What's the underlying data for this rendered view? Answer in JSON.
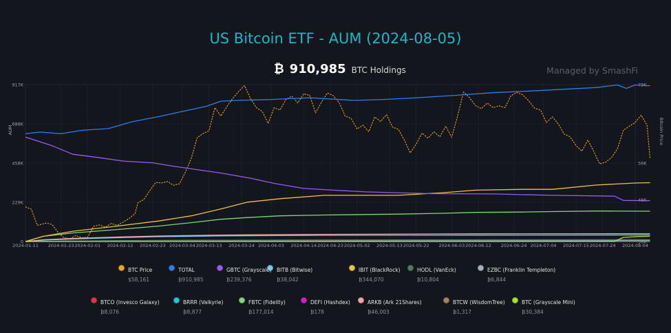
{
  "header": {
    "title": "US Bitcoin ETF - AUM (2024-08-05)",
    "btc_symbol": "₿",
    "holdings_value": "910,985",
    "holdings_label": "BTC Holdings",
    "managed_by": "Managed by SmashFi"
  },
  "chart_data": {
    "type": "line",
    "title": "US Bitcoin ETF - AUM (2024-08-05)",
    "ylabel": "AUM",
    "y2label": "Bitcoin Price",
    "y_ticks": [
      "0",
      "229K",
      "458K",
      "688K",
      "917K"
    ],
    "ylim": [
      0,
      917000
    ],
    "y2_ticks": [
      "39K",
      "48K",
      "56K",
      "73K"
    ],
    "y2_tick_values": [
      39000,
      48000,
      56000,
      73000
    ],
    "y2lim": [
      39000,
      73000
    ],
    "x_ticks": [
      "2024-01-11",
      "2024-01-23",
      "2024-02-01",
      "2024-02-12",
      "2024-02-23",
      "2024-03-04",
      "2024-03-13",
      "2024-03-24",
      "2024-04-03",
      "2024-04-14",
      "2024-04-23",
      "2024-05-02",
      "2024-05-13",
      "2024-05-22",
      "2024-06-03",
      "2024-06-12",
      "2024-06-24",
      "2024-07-04",
      "2024-07-15",
      "2024-07-24",
      "2024-08-04"
    ],
    "x_start": "2024-01-11",
    "x_end": "2024-08-04",
    "grid": true,
    "series": [
      {
        "name": "TOTAL",
        "axis": "left",
        "color": "#2f7fe6",
        "values": [
          [
            0,
            630000
          ],
          [
            5,
            640000
          ],
          [
            12,
            630000
          ],
          [
            19,
            650000
          ],
          [
            28,
            660000
          ],
          [
            36,
            700000
          ],
          [
            45,
            730000
          ],
          [
            53,
            760000
          ],
          [
            61,
            790000
          ],
          [
            66,
            820000
          ],
          [
            72,
            825000
          ],
          [
            83,
            830000
          ],
          [
            96,
            840000
          ],
          [
            111,
            825000
          ],
          [
            121,
            830000
          ],
          [
            132,
            840000
          ],
          [
            146,
            855000
          ],
          [
            158,
            870000
          ],
          [
            171,
            880000
          ],
          [
            182,
            890000
          ],
          [
            193,
            900000
          ],
          [
            200,
            915000
          ],
          [
            203,
            895000
          ],
          [
            206,
            915000
          ],
          [
            211,
            910000
          ]
        ]
      },
      {
        "name": "GBTC (Grayscale)",
        "axis": "left",
        "color": "#9b5cf0",
        "values": [
          [
            0,
            610000
          ],
          [
            9,
            560000
          ],
          [
            16,
            510000
          ],
          [
            25,
            490000
          ],
          [
            33,
            470000
          ],
          [
            43,
            460000
          ],
          [
            50,
            440000
          ],
          [
            58,
            420000
          ],
          [
            66,
            400000
          ],
          [
            76,
            370000
          ],
          [
            84,
            340000
          ],
          [
            94,
            310000
          ],
          [
            104,
            300000
          ],
          [
            115,
            290000
          ],
          [
            136,
            280000
          ],
          [
            158,
            278000
          ],
          [
            178,
            270000
          ],
          [
            199,
            265000
          ],
          [
            202,
            240000
          ],
          [
            211,
            239000
          ]
        ]
      },
      {
        "name": "IBIT (BlackRock)",
        "axis": "left",
        "color": "#f0c24a",
        "values": [
          [
            0,
            0
          ],
          [
            6,
            30000
          ],
          [
            16,
            60000
          ],
          [
            31,
            90000
          ],
          [
            45,
            120000
          ],
          [
            56,
            150000
          ],
          [
            66,
            190000
          ],
          [
            75,
            230000
          ],
          [
            86,
            250000
          ],
          [
            101,
            270000
          ],
          [
            126,
            270000
          ],
          [
            141,
            285000
          ],
          [
            152,
            300000
          ],
          [
            168,
            305000
          ],
          [
            178,
            305000
          ],
          [
            193,
            330000
          ],
          [
            206,
            342000
          ],
          [
            211,
            344000
          ]
        ]
      },
      {
        "name": "FBTC (Fidelity)",
        "axis": "left",
        "color": "#7ed87a",
        "values": [
          [
            0,
            0
          ],
          [
            6,
            30000
          ],
          [
            16,
            50000
          ],
          [
            31,
            70000
          ],
          [
            45,
            90000
          ],
          [
            56,
            110000
          ],
          [
            66,
            130000
          ],
          [
            75,
            140000
          ],
          [
            86,
            150000
          ],
          [
            101,
            155000
          ],
          [
            126,
            160000
          ],
          [
            141,
            165000
          ],
          [
            152,
            170000
          ],
          [
            168,
            172000
          ],
          [
            178,
            175000
          ],
          [
            193,
            178000
          ],
          [
            211,
            177000
          ]
        ]
      },
      {
        "name": "BTC (Grayscale Mini)",
        "axis": "left",
        "color": "#a6e22e",
        "values": [
          [
            0,
            0
          ],
          [
            199,
            0
          ],
          [
            202,
            24000
          ],
          [
            207,
            29000
          ],
          [
            211,
            30384
          ]
        ]
      },
      {
        "name": "ARKB (Ark 21Shares)",
        "axis": "left",
        "color": "#f4a6a6",
        "values": [
          [
            0,
            0
          ],
          [
            6,
            10000
          ],
          [
            16,
            18000
          ],
          [
            31,
            26000
          ],
          [
            45,
            32000
          ],
          [
            66,
            38000
          ],
          [
            101,
            42000
          ],
          [
            152,
            45000
          ],
          [
            211,
            46003
          ]
        ]
      },
      {
        "name": "BITB (Bitwise)",
        "axis": "left",
        "color": "#7ec8f0",
        "values": [
          [
            0,
            0
          ],
          [
            6,
            8000
          ],
          [
            16,
            15000
          ],
          [
            31,
            22000
          ],
          [
            45,
            28000
          ],
          [
            66,
            33000
          ],
          [
            101,
            36000
          ],
          [
            152,
            37000
          ],
          [
            211,
            38042
          ]
        ]
      },
      {
        "name": "HODL (VanEck)",
        "axis": "left",
        "color": "#587a5e",
        "values": [
          [
            0,
            0
          ],
          [
            16,
            3000
          ],
          [
            45,
            6000
          ],
          [
            101,
            9000
          ],
          [
            211,
            10804
          ]
        ]
      },
      {
        "name": "BRRR (Valkyrie)",
        "axis": "left",
        "color": "#1ec8d8",
        "values": [
          [
            0,
            0
          ],
          [
            16,
            3000
          ],
          [
            45,
            6000
          ],
          [
            101,
            8000
          ],
          [
            211,
            8877
          ]
        ]
      },
      {
        "name": "BTCO (Invesco Galaxy)",
        "axis": "left",
        "color": "#e0314f",
        "values": [
          [
            0,
            0
          ],
          [
            16,
            2500
          ],
          [
            45,
            5000
          ],
          [
            101,
            7000
          ],
          [
            211,
            8076
          ]
        ]
      },
      {
        "name": "EZBC (Franklin Templeton)",
        "axis": "left",
        "color": "#a9b0bc",
        "values": [
          [
            0,
            0
          ],
          [
            16,
            2000
          ],
          [
            45,
            4000
          ],
          [
            101,
            5500
          ],
          [
            211,
            6844
          ]
        ]
      },
      {
        "name": "BTCW (WisdomTree)",
        "axis": "left",
        "color": "#a08a5a",
        "values": [
          [
            0,
            0
          ],
          [
            45,
            800
          ],
          [
            211,
            1317
          ]
        ]
      },
      {
        "name": "DEFI (Hashdex)",
        "axis": "left",
        "color": "#d41ed4",
        "values": [
          [
            0,
            0
          ],
          [
            211,
            178
          ]
        ]
      },
      {
        "name": "BTC Price",
        "axis": "right",
        "color": "#f7a51f",
        "dashed": true,
        "values": [
          [
            0,
            46500
          ],
          [
            2,
            46000
          ],
          [
            4,
            42500
          ],
          [
            7,
            43000
          ],
          [
            9,
            42700
          ],
          [
            11,
            41000
          ],
          [
            13,
            39800
          ],
          [
            15,
            39600
          ],
          [
            17,
            40300
          ],
          [
            19,
            39800
          ],
          [
            21,
            39900
          ],
          [
            23,
            42300
          ],
          [
            25,
            42600
          ],
          [
            27,
            42100
          ],
          [
            29,
            42900
          ],
          [
            31,
            42500
          ],
          [
            33,
            43200
          ],
          [
            35,
            44000
          ],
          [
            37,
            45000
          ],
          [
            38,
            47400
          ],
          [
            40,
            48100
          ],
          [
            42,
            50000
          ],
          [
            44,
            51800
          ],
          [
            46,
            51700
          ],
          [
            48,
            52000
          ],
          [
            50,
            51200
          ],
          [
            52,
            51500
          ],
          [
            54,
            54000
          ],
          [
            56,
            57000
          ],
          [
            58,
            61500
          ],
          [
            60,
            62400
          ],
          [
            62,
            63000
          ],
          [
            64,
            68000
          ],
          [
            66,
            66200
          ],
          [
            68,
            68200
          ],
          [
            70,
            70000
          ],
          [
            72,
            71500
          ],
          [
            74,
            72800
          ],
          [
            76,
            70000
          ],
          [
            78,
            68000
          ],
          [
            80,
            67200
          ],
          [
            82,
            64600
          ],
          [
            84,
            68000
          ],
          [
            86,
            67500
          ],
          [
            88,
            69800
          ],
          [
            90,
            70500
          ],
          [
            92,
            69000
          ],
          [
            94,
            71000
          ],
          [
            96,
            70700
          ],
          [
            98,
            66900
          ],
          [
            100,
            69200
          ],
          [
            102,
            71200
          ],
          [
            104,
            70600
          ],
          [
            106,
            69100
          ],
          [
            108,
            66200
          ],
          [
            110,
            65700
          ],
          [
            112,
            63400
          ],
          [
            114,
            64200
          ],
          [
            116,
            62800
          ],
          [
            118,
            66000
          ],
          [
            120,
            65000
          ],
          [
            122,
            66500
          ],
          [
            124,
            63800
          ],
          [
            126,
            63300
          ],
          [
            128,
            61000
          ],
          [
            130,
            58200
          ],
          [
            132,
            60100
          ],
          [
            134,
            62500
          ],
          [
            136,
            61400
          ],
          [
            138,
            62800
          ],
          [
            140,
            61700
          ],
          [
            142,
            64000
          ],
          [
            144,
            61600
          ],
          [
            146,
            66200
          ],
          [
            148,
            71400
          ],
          [
            150,
            70200
          ],
          [
            152,
            68500
          ],
          [
            154,
            67800
          ],
          [
            156,
            69000
          ],
          [
            158,
            68000
          ],
          [
            160,
            68400
          ],
          [
            162,
            68000
          ],
          [
            164,
            70600
          ],
          [
            166,
            71300
          ],
          [
            168,
            70800
          ],
          [
            170,
            69500
          ],
          [
            172,
            67900
          ],
          [
            174,
            67500
          ],
          [
            176,
            64800
          ],
          [
            178,
            66000
          ],
          [
            180,
            64500
          ],
          [
            182,
            62300
          ],
          [
            184,
            61700
          ],
          [
            186,
            59800
          ],
          [
            188,
            58600
          ],
          [
            190,
            61000
          ],
          [
            192,
            58500
          ],
          [
            194,
            55800
          ],
          [
            196,
            56200
          ],
          [
            198,
            57200
          ],
          [
            200,
            59100
          ],
          [
            202,
            63100
          ],
          [
            204,
            64000
          ],
          [
            206,
            64800
          ],
          [
            208,
            66400
          ],
          [
            210,
            64200
          ],
          [
            211,
            57000
          ]
        ]
      }
    ]
  },
  "legend": [
    {
      "name": "BTC Price",
      "amount": "$58,161",
      "color": "#f7a51f"
    },
    {
      "name": "TOTAL",
      "amount": "₿910,985",
      "color": "#2f7fe6"
    },
    {
      "name": "GBTC (Grayscale)",
      "amount": "₿239,376",
      "color": "#9b5cf0"
    },
    {
      "name": "BITB (Bitwise)",
      "amount": "₿38,042",
      "color": "#7ec8f0"
    },
    {
      "name": "IBIT (BlackRock)",
      "amount": "₿344,070",
      "color": "#f0c24a"
    },
    {
      "name": "HODL (VanEck)",
      "amount": "₿10,804",
      "color": "#587a5e"
    },
    {
      "name": "EZBC (Franklin Templeton)",
      "amount": "₿6,844",
      "color": "#a9b0bc"
    },
    {
      "name": "BTCO (Invesco Galaxy)",
      "amount": "₿8,076",
      "color": "#e0314f"
    },
    {
      "name": "BRRR (Valkyrie)",
      "amount": "₿8,877",
      "color": "#1ec8d8"
    },
    {
      "name": "FBTC (Fidelity)",
      "amount": "₿177,014",
      "color": "#7ed87a"
    },
    {
      "name": "DEFI (Hashdex)",
      "amount": "₿178",
      "color": "#d41ed4"
    },
    {
      "name": "ARKB (Ark 21Shares)",
      "amount": "₿46,003",
      "color": "#f4a6a6"
    },
    {
      "name": "BTCW (WisdomTree)",
      "amount": "₿1,317",
      "color": "#a08a5a"
    },
    {
      "name": "BTC (Grayscale Mini)",
      "amount": "₿30,384",
      "color": "#a6e22e"
    }
  ]
}
